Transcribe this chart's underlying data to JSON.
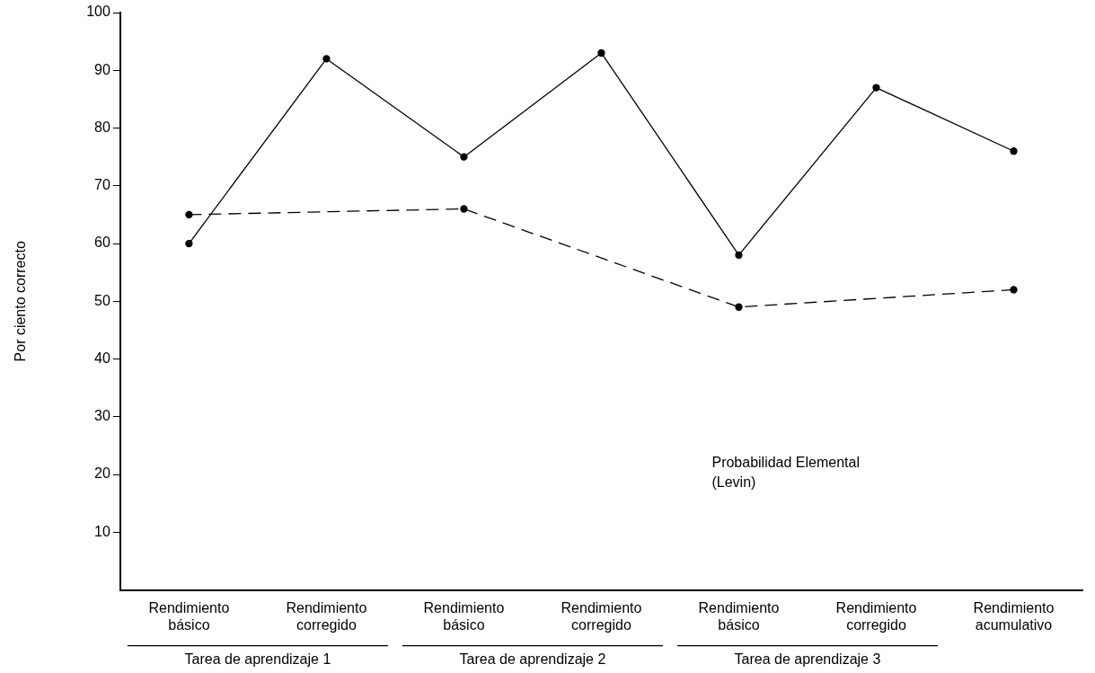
{
  "chart_data": {
    "type": "line",
    "ylabel": "Por ciento correcto",
    "categories": [
      "Rendimiento básico",
      "Rendimiento corregido",
      "Rendimiento básico",
      "Rendimiento corregido",
      "Rendimiento básico",
      "Rendimiento corregido",
      "Rendimiento acumulativo"
    ],
    "series": [
      {
        "color": "#000000",
        "line_style": "solid",
        "values": [
          60,
          92,
          75,
          93,
          58,
          87,
          76
        ]
      },
      {
        "color": "#000000",
        "line_style": "dashed",
        "values": [
          65,
          null,
          66,
          null,
          49,
          null,
          52
        ]
      }
    ],
    "ylim": [
      0,
      100
    ],
    "yticks": [
      10,
      20,
      30,
      40,
      50,
      60,
      70,
      80,
      90,
      100
    ],
    "grid": false,
    "legend": false,
    "marker": "circle",
    "annotations": [
      "Probabilidad Elemental (Levin)",
      "Tarea de aprendizaje 1",
      "Tarea de aprendizaje 2",
      "Tarea de aprendizaje 3"
    ]
  }
}
